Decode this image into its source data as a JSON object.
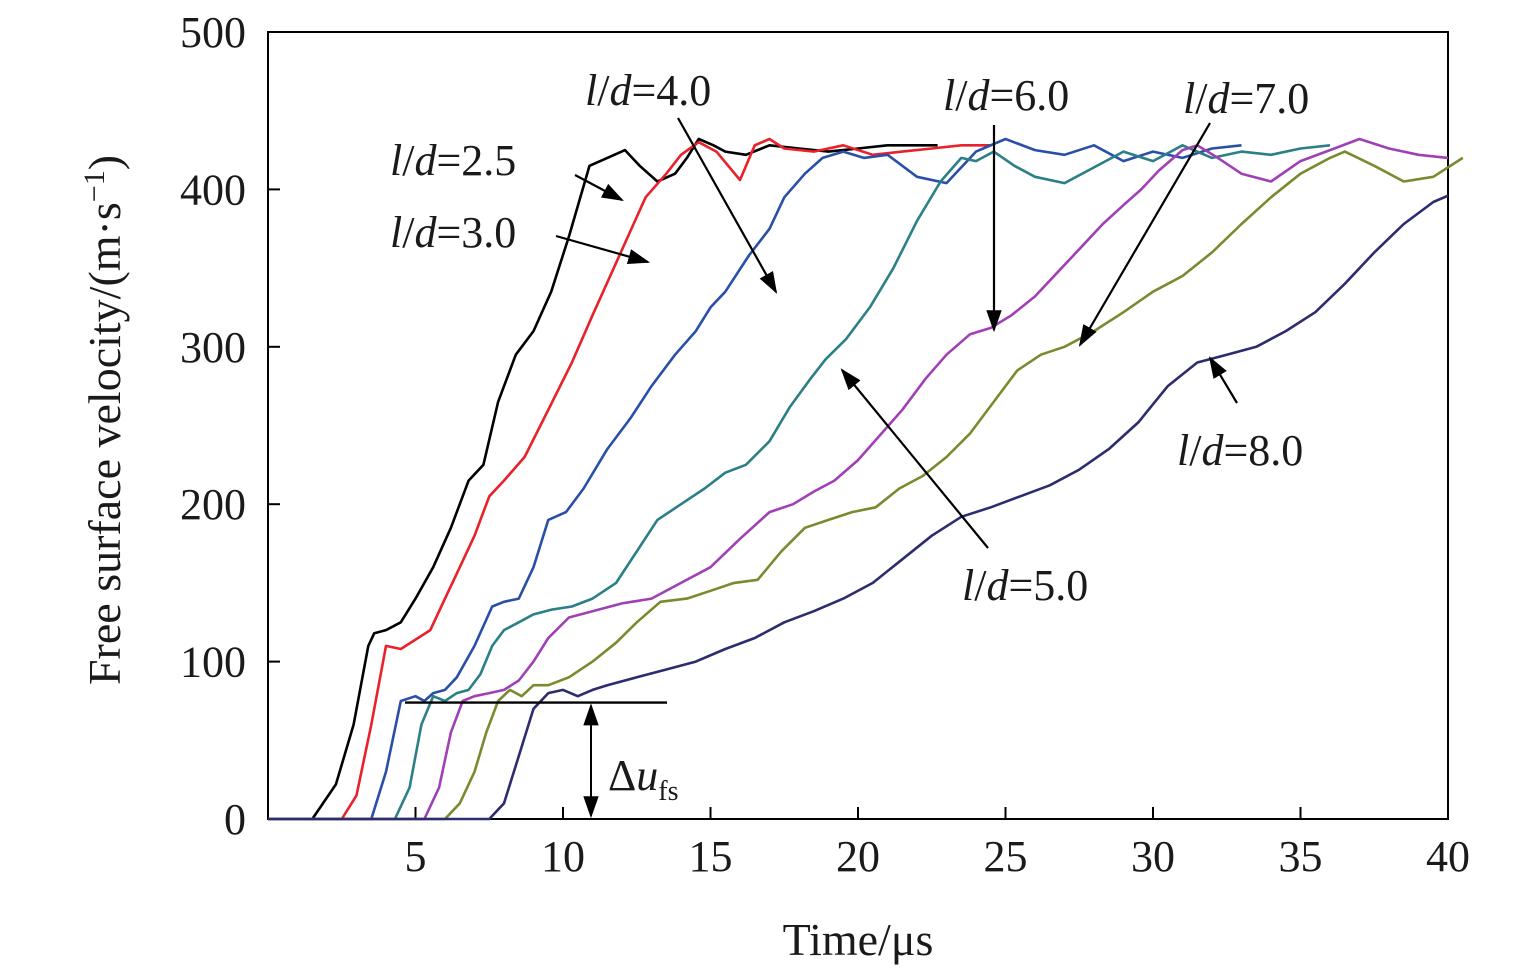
{
  "chart_data": {
    "type": "line",
    "title": "",
    "xlabel": "Time/μs",
    "ylabel": "Free surface velocity/(m·s",
    "ylabel_sup": "−1",
    "ylabel_close": ")",
    "xlim": [
      0,
      40
    ],
    "ylim": [
      0,
      500
    ],
    "xticks": [
      5,
      10,
      15,
      20,
      25,
      30,
      35,
      40
    ],
    "yticks": [
      0,
      100,
      200,
      300,
      400,
      500
    ],
    "grid": false,
    "series": [
      {
        "name": "l/d=2.5",
        "color": "#000000",
        "x": [
          0,
          1.5,
          2.3,
          2.9,
          3.4,
          3.6,
          4.0,
          4.5,
          5.0,
          5.6,
          6.2,
          6.8,
          7.3,
          7.8,
          8.4,
          9.0,
          9.6,
          10.2,
          10.9,
          11.5,
          12.1,
          12.6,
          13.2,
          13.8,
          14.2,
          14.6,
          15.1,
          15.5,
          16.2,
          17.0,
          18.0,
          19.0,
          20.0,
          21.0,
          22.0,
          22.7
        ],
        "y": [
          0,
          0,
          22,
          60,
          110,
          118,
          120,
          125,
          140,
          160,
          185,
          215,
          225,
          265,
          295,
          310,
          335,
          370,
          415,
          420,
          425,
          415,
          405,
          410,
          420,
          432,
          428,
          424,
          422,
          428,
          426,
          424,
          426,
          428,
          428,
          428
        ]
      },
      {
        "name": "l/d=3.0",
        "color": "#e8212a",
        "x": [
          0,
          2.5,
          3.0,
          3.5,
          4.0,
          4.5,
          5.0,
          5.5,
          6.0,
          6.5,
          7.0,
          7.5,
          8.0,
          8.7,
          9.5,
          10.3,
          11.0,
          11.6,
          12.2,
          12.8,
          13.5,
          14.0,
          14.6,
          15.2,
          16.0,
          16.5,
          17.0,
          17.5,
          18.5,
          19.5,
          20.5,
          21.5,
          22.5,
          23.5,
          24.5
        ],
        "y": [
          0,
          0,
          15,
          60,
          110,
          108,
          114,
          120,
          140,
          160,
          180,
          205,
          215,
          230,
          260,
          290,
          320,
          345,
          370,
          395,
          410,
          422,
          430,
          424,
          406,
          428,
          432,
          426,
          424,
          428,
          422,
          424,
          426,
          428,
          428
        ]
      },
      {
        "name": "l/d=4.0",
        "color": "#2a4fa8",
        "x": [
          0,
          3.5,
          4.0,
          4.5,
          5.0,
          5.3,
          5.6,
          6.0,
          6.4,
          7.0,
          7.6,
          8.0,
          8.5,
          9.0,
          9.5,
          10.1,
          10.7,
          11.5,
          12.3,
          13.0,
          13.8,
          14.5,
          15.0,
          15.5,
          16.3,
          17.0,
          17.5,
          18.2,
          18.8,
          19.5,
          20.2,
          21.0,
          22.0,
          23.0,
          24.0,
          25.0,
          26.0,
          27.0,
          28.0,
          29.0,
          30.0,
          31.0,
          32.0,
          33.0
        ],
        "y": [
          0,
          0,
          30,
          75,
          78,
          75,
          80,
          82,
          90,
          110,
          135,
          138,
          140,
          160,
          190,
          195,
          210,
          235,
          255,
          275,
          295,
          310,
          325,
          335,
          358,
          375,
          395,
          410,
          420,
          424,
          420,
          422,
          408,
          404,
          424,
          432,
          425,
          422,
          428,
          418,
          424,
          420,
          426,
          428
        ]
      },
      {
        "name": "l/d=5.0",
        "color": "#2b7f86",
        "x": [
          0,
          4.3,
          4.8,
          5.2,
          5.6,
          6.0,
          6.4,
          6.8,
          7.2,
          7.6,
          8.0,
          8.5,
          9.0,
          9.6,
          10.3,
          11.0,
          11.8,
          12.5,
          13.2,
          14.0,
          14.8,
          15.5,
          16.2,
          17.0,
          17.7,
          18.4,
          18.9,
          19.6,
          20.4,
          21.2,
          22.0,
          22.8,
          23.5,
          24.0,
          24.6,
          25.3,
          26.0,
          27.0,
          28.0,
          29.0,
          30.0,
          31.0,
          32.0,
          33.0,
          34.0,
          35.0,
          36.0
        ],
        "y": [
          0,
          0,
          20,
          60,
          78,
          75,
          80,
          82,
          92,
          110,
          120,
          125,
          130,
          133,
          135,
          140,
          150,
          170,
          190,
          200,
          210,
          220,
          225,
          240,
          262,
          280,
          292,
          305,
          325,
          350,
          380,
          405,
          420,
          418,
          424,
          415,
          408,
          404,
          414,
          424,
          418,
          428,
          420,
          424,
          422,
          426,
          428
        ]
      },
      {
        "name": "l/d=6.0",
        "color": "#a040b5",
        "x": [
          0,
          5.3,
          5.8,
          6.2,
          6.6,
          7.0,
          7.5,
          8.0,
          8.5,
          9.0,
          9.5,
          10.2,
          11.0,
          12.0,
          13.0,
          14.0,
          15.0,
          16.0,
          17.0,
          17.8,
          18.5,
          19.2,
          20.0,
          20.8,
          21.5,
          22.3,
          23.0,
          23.8,
          24.5,
          25.2,
          26.0,
          26.8,
          27.5,
          28.3,
          29.0,
          29.6,
          30.2,
          31.0,
          31.5,
          32.2,
          33.0,
          34.0,
          35.0,
          36.0,
          37.0,
          38.0,
          39.0,
          40.0
        ],
        "y": [
          0,
          0,
          20,
          55,
          75,
          78,
          80,
          82,
          88,
          100,
          115,
          128,
          132,
          137,
          140,
          150,
          160,
          178,
          195,
          200,
          208,
          215,
          228,
          245,
          260,
          280,
          295,
          308,
          312,
          320,
          332,
          348,
          362,
          378,
          390,
          400,
          412,
          425,
          428,
          420,
          410,
          405,
          418,
          425,
          432,
          426,
          422,
          420
        ]
      },
      {
        "name": "l/d=7.0",
        "color": "#7a8a2e",
        "x": [
          0,
          6.0,
          6.5,
          7.0,
          7.4,
          7.8,
          8.2,
          8.6,
          9.0,
          9.5,
          10.2,
          11.0,
          11.8,
          12.5,
          13.3,
          14.2,
          15.0,
          15.8,
          16.6,
          17.4,
          18.2,
          19.0,
          19.8,
          20.6,
          21.4,
          22.2,
          23.0,
          23.8,
          24.6,
          25.4,
          26.2,
          27.0,
          28.0,
          29.0,
          30.0,
          31.0,
          32.0,
          33.0,
          34.0,
          35.0,
          36.0,
          36.5,
          37.5,
          38.5,
          39.5,
          40.5
        ],
        "y": [
          0,
          0,
          10,
          30,
          55,
          75,
          82,
          78,
          85,
          85,
          90,
          100,
          112,
          125,
          138,
          140,
          145,
          150,
          152,
          170,
          185,
          190,
          195,
          198,
          210,
          218,
          230,
          245,
          265,
          285,
          295,
          300,
          310,
          322,
          335,
          345,
          360,
          378,
          395,
          410,
          420,
          424,
          415,
          405,
          408,
          420
        ]
      },
      {
        "name": "l/d=8.0",
        "color": "#2c2c6e",
        "x": [
          0,
          7.5,
          8.0,
          8.5,
          9.0,
          9.5,
          10.0,
          10.5,
          11.0,
          11.5,
          12.5,
          13.5,
          14.5,
          15.5,
          16.5,
          17.5,
          18.5,
          19.5,
          20.5,
          21.5,
          22.5,
          23.5,
          24.5,
          25.5,
          26.5,
          27.5,
          28.5,
          29.5,
          30.5,
          31.5,
          32.5,
          33.5,
          34.5,
          35.5,
          36.5,
          37.5,
          38.5,
          39.5,
          40.0
        ],
        "y": [
          0,
          0,
          10,
          40,
          70,
          80,
          82,
          78,
          82,
          85,
          90,
          95,
          100,
          108,
          115,
          125,
          132,
          140,
          150,
          165,
          180,
          192,
          198,
          205,
          212,
          222,
          235,
          252,
          275,
          290,
          295,
          300,
          310,
          322,
          340,
          360,
          378,
          392,
          396
        ]
      }
    ],
    "annotations": [
      {
        "id": "ld25",
        "italic_part": "l",
        "sep": "/",
        "italic_part2": "d",
        "rest": "=2.5"
      },
      {
        "id": "ld30",
        "italic_part": "l",
        "sep": "/",
        "italic_part2": "d",
        "rest": "=3.0"
      },
      {
        "id": "ld40",
        "italic_part": "l",
        "sep": "/",
        "italic_part2": "d",
        "rest": "=4.0"
      },
      {
        "id": "ld50",
        "italic_part": "l",
        "sep": "/",
        "italic_part2": "d",
        "rest": "=5.0"
      },
      {
        "id": "ld60",
        "italic_part": "l",
        "sep": "/",
        "italic_part2": "d",
        "rest": "=6.0"
      },
      {
        "id": "ld70",
        "italic_part": "l",
        "sep": "/",
        "italic_part2": "d",
        "rest": "=7.0"
      },
      {
        "id": "ld80",
        "italic_part": "l",
        "sep": "/",
        "italic_part2": "d",
        "rest": "=8.0"
      }
    ],
    "delta_label": {
      "prefix": "Δ",
      "italic": "u",
      "sub": "fs",
      "level": 74
    }
  }
}
